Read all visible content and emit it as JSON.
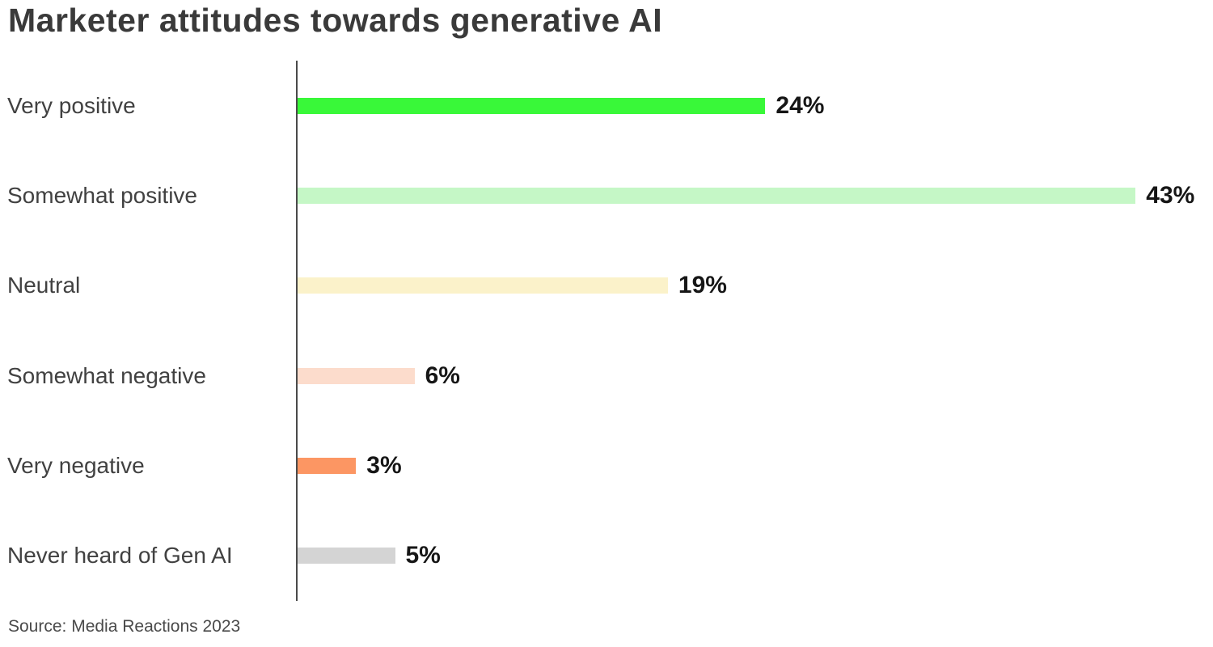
{
  "title": "Marketer attitudes towards generative AI",
  "source": "Source: Media Reactions 2023",
  "chart_data": {
    "type": "bar",
    "orientation": "horizontal",
    "title": "Marketer attitudes towards generative AI",
    "categories": [
      "Very positive",
      "Somewhat positive",
      "Neutral",
      "Somewhat negative",
      "Very negative",
      "Never heard of Gen AI"
    ],
    "values": [
      24,
      43,
      19,
      6,
      3,
      5
    ],
    "value_labels": [
      "24%",
      "43%",
      "19%",
      "6%",
      "3%",
      "5%"
    ],
    "unit": "%",
    "xlim": [
      0,
      43
    ],
    "bar_colors": [
      "#39f839",
      "#c5f7c6",
      "#fbf2ca",
      "#fcdccc",
      "#fc9663",
      "#d4d4d4"
    ],
    "axis_color": "#4a4a4a",
    "grid": false,
    "legend": false,
    "value_label_position": "end-of-bar",
    "source": "Source: Media Reactions 2023"
  },
  "layout_colors": {
    "title_text": "#3a3a3a",
    "category_text": "#414141",
    "value_text": "#161616",
    "source_text": "#4a4a4a",
    "background": "#ffffff"
  }
}
